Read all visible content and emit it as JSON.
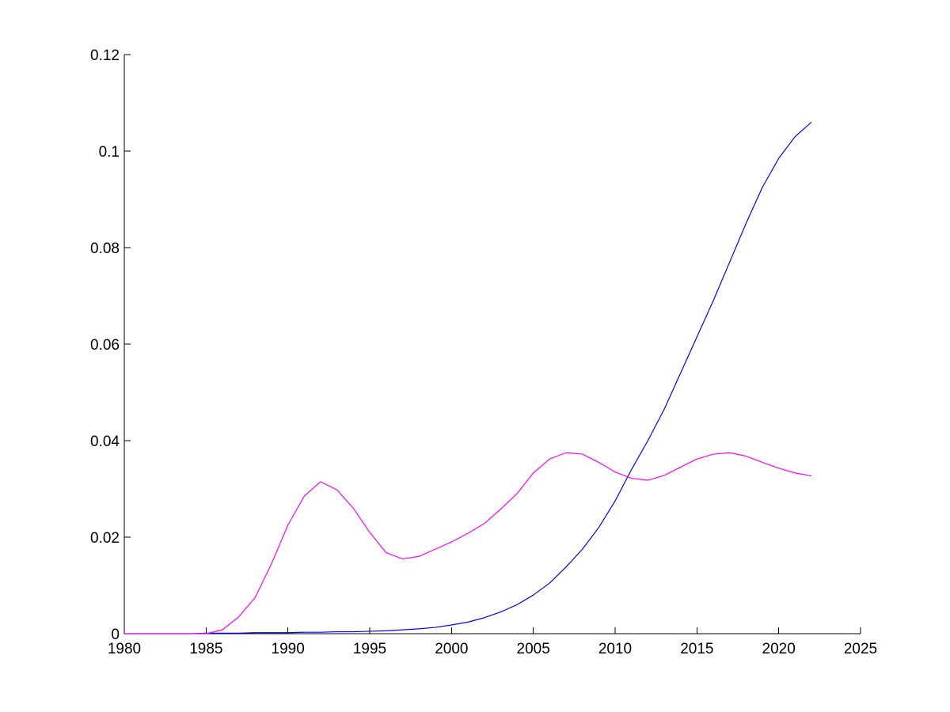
{
  "chart_data": {
    "type": "line",
    "title": "",
    "xlabel": "",
    "ylabel": "",
    "xlim": [
      1980,
      2025
    ],
    "ylim": [
      0,
      0.12
    ],
    "x_ticks": [
      1980,
      1985,
      1990,
      1995,
      2000,
      2005,
      2010,
      2015,
      2020,
      2025
    ],
    "x_tick_labels": [
      "1980",
      "1985",
      "1990",
      "1995",
      "2000",
      "2005",
      "2010",
      "2015",
      "2020",
      "2025"
    ],
    "y_ticks": [
      0,
      0.02,
      0.04,
      0.06,
      0.08,
      0.1,
      0.12
    ],
    "y_tick_labels": [
      "0",
      "0.02",
      "0.04",
      "0.06",
      "0.08",
      "0.1",
      "0.12"
    ],
    "grid": false,
    "legend": "none",
    "x": [
      1980,
      1981,
      1982,
      1983,
      1984,
      1985,
      1986,
      1987,
      1988,
      1989,
      1990,
      1991,
      1992,
      1993,
      1994,
      1995,
      1996,
      1997,
      1998,
      1999,
      2000,
      2001,
      2002,
      2003,
      2004,
      2005,
      2006,
      2007,
      2008,
      2009,
      2010,
      2011,
      2012,
      2013,
      2014,
      2015,
      2016,
      2017,
      2018,
      2019,
      2020,
      2021,
      2022
    ],
    "series": [
      {
        "color": "#0000ff",
        "values": [
          0,
          0,
          0,
          0,
          0,
          0.0001,
          0.0001,
          0.0001,
          0.0002,
          0.0002,
          0.0002,
          0.0003,
          0.0003,
          0.0004,
          0.0004,
          0.0005,
          0.0006,
          0.0008,
          0.001,
          0.0013,
          0.0018,
          0.0024,
          0.0033,
          0.0045,
          0.006,
          0.008,
          0.0105,
          0.0138,
          0.0175,
          0.022,
          0.0275,
          0.034,
          0.04,
          0.0465,
          0.054,
          0.0615,
          0.069,
          0.077,
          0.085,
          0.0925,
          0.0985,
          0.103,
          0.106
        ]
      },
      {
        "color": "#ff00ff",
        "values": [
          0,
          0,
          0,
          0,
          0,
          0,
          0.0008,
          0.0035,
          0.0075,
          0.0145,
          0.0225,
          0.0285,
          0.0315,
          0.0298,
          0.026,
          0.021,
          0.0168,
          0.0155,
          0.016,
          0.0175,
          0.019,
          0.0208,
          0.0228,
          0.0258,
          0.029,
          0.0333,
          0.0362,
          0.0375,
          0.0372,
          0.0355,
          0.0335,
          0.0322,
          0.0318,
          0.0328,
          0.0345,
          0.0362,
          0.0372,
          0.0375,
          0.0368,
          0.0355,
          0.0343,
          0.0333,
          0.0327
        ]
      }
    ]
  }
}
